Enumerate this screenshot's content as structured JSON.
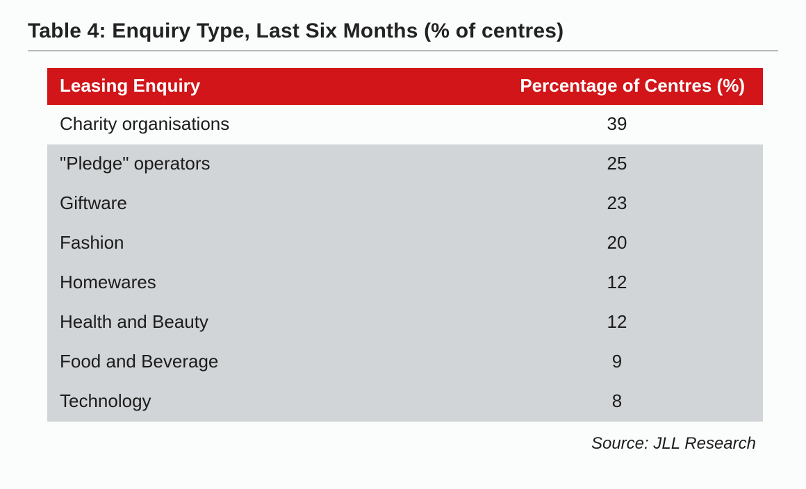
{
  "title": "Table 4: Enquiry Type, Last Six Months (% of centres)",
  "table": {
    "type": "table",
    "header_bg": "#d11518",
    "header_fg": "#ffffff",
    "band_bg": "#d2d5d7",
    "plain_bg": "#fbfcfc",
    "text_color": "#1c1c1c",
    "header_fontsize": 26,
    "body_fontsize": 26,
    "columns": [
      {
        "label": "Leasing Enquiry",
        "align": "left"
      },
      {
        "label": "Percentage of Centres (%)",
        "align": "right"
      }
    ],
    "rows": [
      {
        "enquiry": "Charity organisations",
        "pct": "39",
        "band": false
      },
      {
        "enquiry": "\"Pledge\" operators",
        "pct": "25",
        "band": true
      },
      {
        "enquiry": "Giftware",
        "pct": "23",
        "band": true
      },
      {
        "enquiry": "Fashion",
        "pct": "20",
        "band": true
      },
      {
        "enquiry": "Homewares",
        "pct": "12",
        "band": true
      },
      {
        "enquiry": "Health and Beauty",
        "pct": "12",
        "band": true
      },
      {
        "enquiry": "Food and Beverage",
        "pct": "9",
        "band": true
      },
      {
        "enquiry": "Technology",
        "pct": "8",
        "band": true
      }
    ]
  },
  "source": "Source: JLL Research"
}
